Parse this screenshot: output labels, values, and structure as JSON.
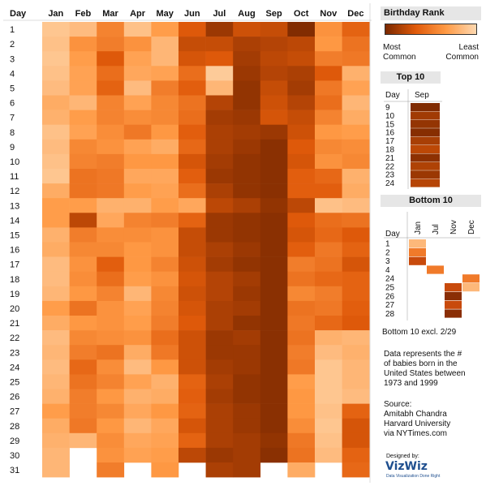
{
  "chart_data": {
    "type": "heatmap",
    "row_header": "Day",
    "months": [
      "Jan",
      "Feb",
      "Mar",
      "Apr",
      "May",
      "Jun",
      "Jul",
      "Aug",
      "Sep",
      "Oct",
      "Nov",
      "Dec"
    ],
    "days": [
      "1",
      "2",
      "3",
      "4",
      "5",
      "6",
      "7",
      "8",
      "9",
      "10",
      "11",
      "12",
      "13",
      "14",
      "15",
      "16",
      "17",
      "18",
      "19",
      "20",
      "21",
      "22",
      "23",
      "24",
      "25",
      "26",
      "27",
      "28",
      "29",
      "30",
      "31"
    ],
    "rank_scale": "1 = most common birthday, 366 = least common",
    "ranks": [
      [
        330,
        310,
        200,
        320,
        250,
        120,
        40,
        100,
        90,
        10,
        230,
        140
      ],
      [
        320,
        230,
        190,
        230,
        300,
        90,
        90,
        60,
        70,
        80,
        240,
        170
      ],
      [
        330,
        250,
        120,
        260,
        300,
        110,
        120,
        50,
        80,
        90,
        190,
        180
      ],
      [
        320,
        260,
        160,
        270,
        260,
        160,
        340,
        40,
        70,
        60,
        120,
        290
      ],
      [
        310,
        260,
        140,
        310,
        190,
        130,
        300,
        30,
        90,
        50,
        180,
        260
      ],
      [
        280,
        300,
        200,
        260,
        210,
        170,
        70,
        30,
        100,
        70,
        160,
        300
      ],
      [
        290,
        250,
        200,
        220,
        210,
        160,
        50,
        40,
        110,
        90,
        200,
        280
      ],
      [
        320,
        260,
        220,
        180,
        240,
        130,
        60,
        50,
        40,
        100,
        240,
        250
      ],
      [
        310,
        210,
        230,
        260,
        280,
        150,
        60,
        40,
        20,
        120,
        210,
        220
      ],
      [
        320,
        200,
        190,
        240,
        240,
        110,
        50,
        30,
        20,
        110,
        230,
        210
      ],
      [
        330,
        170,
        180,
        270,
        270,
        130,
        40,
        30,
        20,
        130,
        150,
        290
      ],
      [
        280,
        170,
        180,
        250,
        260,
        160,
        60,
        30,
        20,
        130,
        130,
        280
      ],
      [
        250,
        250,
        290,
        290,
        250,
        270,
        80,
        60,
        30,
        80,
        320,
        310
      ],
      [
        250,
        80,
        270,
        200,
        190,
        140,
        40,
        30,
        20,
        120,
        160,
        170
      ],
      [
        290,
        190,
        220,
        220,
        230,
        90,
        40,
        30,
        20,
        110,
        150,
        120
      ],
      [
        280,
        210,
        210,
        240,
        230,
        90,
        60,
        40,
        20,
        130,
        180,
        140
      ],
      [
        310,
        230,
        130,
        240,
        200,
        100,
        50,
        30,
        20,
        190,
        170,
        110
      ],
      [
        310,
        220,
        160,
        250,
        230,
        110,
        70,
        50,
        20,
        170,
        150,
        140
      ],
      [
        300,
        240,
        200,
        300,
        210,
        100,
        70,
        40,
        20,
        210,
        190,
        140
      ],
      [
        250,
        170,
        230,
        260,
        200,
        110,
        60,
        50,
        20,
        170,
        180,
        130
      ],
      [
        280,
        240,
        230,
        250,
        190,
        120,
        60,
        30,
        20,
        180,
        150,
        120
      ],
      [
        310,
        210,
        220,
        230,
        160,
        100,
        40,
        50,
        20,
        170,
        290,
        300
      ],
      [
        300,
        190,
        170,
        280,
        180,
        100,
        40,
        40,
        20,
        190,
        310,
        290
      ],
      [
        310,
        150,
        220,
        310,
        240,
        100,
        50,
        40,
        20,
        180,
        330,
        300
      ],
      [
        300,
        170,
        200,
        260,
        290,
        140,
        60,
        30,
        20,
        250,
        330,
        300
      ],
      [
        290,
        190,
        240,
        290,
        280,
        130,
        50,
        30,
        20,
        240,
        330,
        310
      ],
      [
        250,
        190,
        210,
        270,
        240,
        140,
        60,
        40,
        20,
        240,
        320,
        140
      ],
      [
        280,
        180,
        240,
        300,
        270,
        110,
        60,
        40,
        20,
        220,
        330,
        110
      ],
      [
        290,
        300,
        220,
        270,
        260,
        140,
        60,
        50,
        30,
        180,
        320,
        110
      ],
      [
        300,
        null,
        230,
        260,
        250,
        80,
        40,
        50,
        20,
        170,
        310,
        140
      ],
      [
        300,
        null,
        190,
        null,
        240,
        null,
        60,
        50,
        null,
        280,
        null,
        150
      ]
    ]
  },
  "legend": {
    "title": "Birthday Rank",
    "most_label": "Most",
    "most_label2": "Common",
    "least_label": "Least",
    "least_label2": "Common",
    "gradient_colors": [
      "#7a2800",
      "#e05a0a",
      "#ff9a45",
      "#fdd8b0"
    ]
  },
  "top10": {
    "title": "Top 10",
    "col_day": "Day",
    "col_month": "Sep",
    "days": [
      "9",
      "10",
      "15",
      "16",
      "17",
      "18",
      "21",
      "22",
      "23",
      "24"
    ],
    "ranks": [
      1,
      6,
      4,
      2,
      7,
      10,
      3,
      8,
      5,
      9
    ]
  },
  "bottom10": {
    "title": "Bottom 10",
    "col_day": "Day",
    "months": [
      "Jan",
      "Jul",
      "Nov",
      "Dec"
    ],
    "days": [
      "1",
      "2",
      "3",
      "4",
      "24",
      "25",
      "26",
      "27",
      "28"
    ],
    "cells": [
      {
        "day": "1",
        "month": "Jan",
        "rank": 366
      },
      {
        "day": "2",
        "month": "Jan",
        "rank": 364
      },
      {
        "day": "3",
        "month": "Jan",
        "rank": 358
      },
      {
        "day": "4",
        "month": "Jul",
        "rank": 362
      },
      {
        "day": "24",
        "month": "Dec",
        "rank": 363
      },
      {
        "day": "25",
        "month": "Dec",
        "rank": 365
      },
      {
        "day": "26",
        "month": "Nov",
        "rank": 357
      },
      {
        "day": "27",
        "month": "Nov",
        "rank": 358
      },
      {
        "day": "28",
        "month": "Nov",
        "rank": 356
      },
      {
        "day": "25",
        "month": "Nov",
        "rank": 359
      }
    ],
    "footnote": "Bottom 10 excl. 2/29"
  },
  "notes": {
    "data_line1": "Data represents the #",
    "data_line2": "of babies born in the",
    "data_line3": "United States between",
    "data_line4": "1973 and 1999",
    "source_label": "Source:",
    "source_name": "Amitabh Chandra",
    "source_org": "Harvard University",
    "source_via": "via NYTimes.com"
  },
  "brand": {
    "designed_by": "Designed by:",
    "logo_part1": "Viz",
    "logo_part2": "Wiz",
    "tagline": "Data Visualization Done Right"
  }
}
